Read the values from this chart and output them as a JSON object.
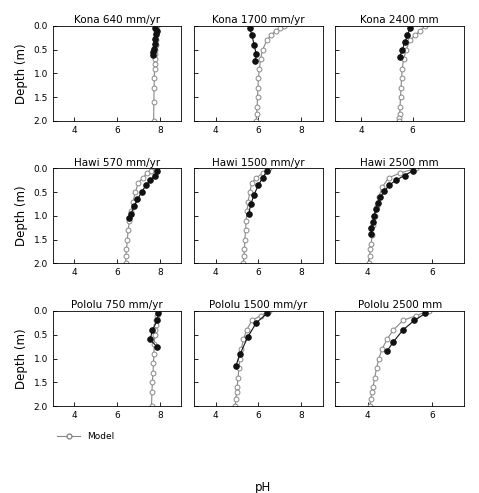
{
  "panels": [
    {
      "title": "Kona 640 mm/yr",
      "model_ph": [
        7.85,
        7.83,
        7.82,
        7.81,
        7.8,
        7.79,
        7.78,
        7.77,
        7.76,
        7.75,
        7.74,
        7.73,
        7.72,
        7.71
      ],
      "model_depth": [
        0.0,
        0.1,
        0.2,
        0.3,
        0.4,
        0.5,
        0.6,
        0.7,
        0.8,
        0.9,
        1.1,
        1.3,
        1.6,
        2.0
      ],
      "obs_ph": [
        7.75,
        7.85,
        7.82,
        7.78,
        7.75,
        7.72,
        7.7,
        7.68
      ],
      "obs_depth": [
        0.05,
        0.1,
        0.18,
        0.28,
        0.38,
        0.48,
        0.55,
        0.62
      ],
      "xlim": [
        3,
        9
      ],
      "xticks": [
        4,
        6,
        8
      ]
    },
    {
      "title": "Kona 1700 mm/yr",
      "model_ph": [
        7.2,
        7.0,
        6.8,
        6.6,
        6.4,
        6.2,
        6.1,
        6.05,
        6.0,
        5.98,
        5.96,
        5.94,
        5.92,
        5.9
      ],
      "model_depth": [
        0.0,
        0.05,
        0.1,
        0.2,
        0.3,
        0.5,
        0.7,
        0.9,
        1.1,
        1.3,
        1.5,
        1.7,
        1.85,
        2.0
      ],
      "obs_ph": [
        5.6,
        5.7,
        5.8,
        5.9,
        5.85
      ],
      "obs_depth": [
        0.05,
        0.2,
        0.4,
        0.6,
        0.75
      ],
      "xlim": [
        3,
        9
      ],
      "xticks": [
        4,
        6,
        8
      ]
    },
    {
      "title": "Kona 2400 mm",
      "model_ph": [
        6.5,
        6.3,
        6.1,
        5.9,
        5.75,
        5.65,
        5.6,
        5.57,
        5.55,
        5.53,
        5.51,
        5.5,
        5.49,
        5.48
      ],
      "model_depth": [
        0.0,
        0.1,
        0.2,
        0.3,
        0.5,
        0.7,
        0.9,
        1.1,
        1.3,
        1.5,
        1.7,
        1.85,
        1.95,
        2.0
      ],
      "obs_ph": [
        5.9,
        5.8,
        5.7,
        5.6,
        5.5
      ],
      "obs_depth": [
        0.05,
        0.2,
        0.35,
        0.5,
        0.65
      ],
      "xlim": [
        3,
        8
      ],
      "xticks": [
        4,
        6
      ]
    },
    {
      "title": "Hawi 570 mm/yr",
      "model_ph": [
        7.8,
        7.6,
        7.4,
        7.2,
        7.0,
        6.85,
        6.75,
        6.65,
        6.58,
        6.52,
        6.48,
        6.44,
        6.42,
        6.4
      ],
      "model_depth": [
        0.0,
        0.05,
        0.1,
        0.2,
        0.3,
        0.5,
        0.7,
        0.9,
        1.1,
        1.3,
        1.5,
        1.7,
        1.85,
        2.0
      ],
      "obs_ph": [
        7.85,
        7.75,
        7.55,
        7.35,
        7.15,
        6.95,
        6.8,
        6.65,
        6.55
      ],
      "obs_depth": [
        0.05,
        0.15,
        0.25,
        0.35,
        0.5,
        0.65,
        0.8,
        0.95,
        1.05
      ],
      "xlim": [
        3,
        9
      ],
      "xticks": [
        4,
        6,
        8
      ]
    },
    {
      "title": "Hawi 1500 mm/yr",
      "model_ph": [
        6.5,
        6.2,
        5.9,
        5.7,
        5.6,
        5.52,
        5.47,
        5.43,
        5.4,
        5.37,
        5.35,
        5.32,
        5.3
      ],
      "model_depth": [
        0.0,
        0.1,
        0.2,
        0.3,
        0.5,
        0.7,
        0.9,
        1.1,
        1.3,
        1.5,
        1.7,
        1.85,
        2.0
      ],
      "obs_ph": [
        6.4,
        6.2,
        6.0,
        5.8,
        5.65,
        5.55
      ],
      "obs_depth": [
        0.05,
        0.2,
        0.35,
        0.55,
        0.75,
        0.95
      ],
      "xlim": [
        3,
        9
      ],
      "xticks": [
        4,
        6,
        8
      ]
    },
    {
      "title": "Hawi 2500 mm",
      "model_ph": [
        5.5,
        5.0,
        4.65,
        4.45,
        4.35,
        4.28,
        4.22,
        4.18,
        4.14,
        4.11,
        4.08,
        4.06,
        4.04
      ],
      "model_depth": [
        0.0,
        0.1,
        0.2,
        0.4,
        0.6,
        0.8,
        1.0,
        1.2,
        1.4,
        1.6,
        1.7,
        1.85,
        2.0
      ],
      "obs_ph": [
        5.4,
        5.15,
        4.88,
        4.68,
        4.52,
        4.4,
        4.32,
        4.25,
        4.2,
        4.16,
        4.12,
        4.09
      ],
      "obs_depth": [
        0.05,
        0.15,
        0.25,
        0.35,
        0.48,
        0.6,
        0.73,
        0.86,
        1.0,
        1.12,
        1.25,
        1.38
      ],
      "xlim": [
        3,
        7
      ],
      "xticks": [
        4,
        6
      ]
    },
    {
      "title": "Pololu 750 mm/yr",
      "model_ph": [
        7.9,
        7.85,
        7.82,
        7.8,
        7.78,
        7.76,
        7.74,
        7.72,
        7.7,
        7.68,
        7.65,
        7.63,
        7.61
      ],
      "model_depth": [
        0.0,
        0.1,
        0.2,
        0.3,
        0.4,
        0.5,
        0.7,
        0.9,
        1.1,
        1.3,
        1.5,
        1.7,
        2.0
      ],
      "obs_ph": [
        7.92,
        7.88,
        7.65,
        7.55,
        7.85
      ],
      "obs_depth": [
        0.05,
        0.2,
        0.4,
        0.6,
        0.75
      ],
      "xlim": [
        3,
        9
      ],
      "xticks": [
        4,
        6,
        8
      ]
    },
    {
      "title": "Pololu 1500 mm/yr",
      "model_ph": [
        6.5,
        6.1,
        5.7,
        5.45,
        5.3,
        5.2,
        5.14,
        5.09,
        5.05,
        5.01,
        4.98,
        4.95,
        4.92
      ],
      "model_depth": [
        0.0,
        0.1,
        0.2,
        0.4,
        0.6,
        0.8,
        1.0,
        1.2,
        1.4,
        1.6,
        1.7,
        1.85,
        2.0
      ],
      "obs_ph": [
        6.4,
        5.9,
        5.5,
        5.15,
        4.95
      ],
      "obs_depth": [
        0.05,
        0.25,
        0.55,
        0.9,
        1.15
      ],
      "xlim": [
        3,
        9
      ],
      "xticks": [
        4,
        6,
        8
      ]
    },
    {
      "title": "Pololu 2500 mm",
      "model_ph": [
        5.9,
        5.5,
        5.1,
        4.8,
        4.6,
        4.45,
        4.35,
        4.28,
        4.22,
        4.17,
        4.13,
        4.1,
        4.07
      ],
      "model_depth": [
        0.0,
        0.1,
        0.2,
        0.4,
        0.6,
        0.8,
        1.0,
        1.2,
        1.4,
        1.6,
        1.7,
        1.85,
        2.0
      ],
      "obs_ph": [
        5.8,
        5.45,
        5.1,
        4.8,
        4.6
      ],
      "obs_depth": [
        0.05,
        0.2,
        0.4,
        0.65,
        0.85
      ],
      "xlim": [
        3,
        7
      ],
      "xticks": [
        4,
        6
      ]
    }
  ],
  "nrows": 3,
  "ncols": 3,
  "ylim": [
    0,
    2
  ],
  "yticks": [
    0,
    0.5,
    1,
    1.5,
    2
  ],
  "ylabel": "Depth (m)",
  "xlabel": "pH",
  "model_color": "#888888",
  "obs_color": "#111111",
  "legend_label_model": "Model",
  "title_fontsize": 7.5,
  "tick_fontsize": 6.5,
  "label_fontsize": 8.5
}
